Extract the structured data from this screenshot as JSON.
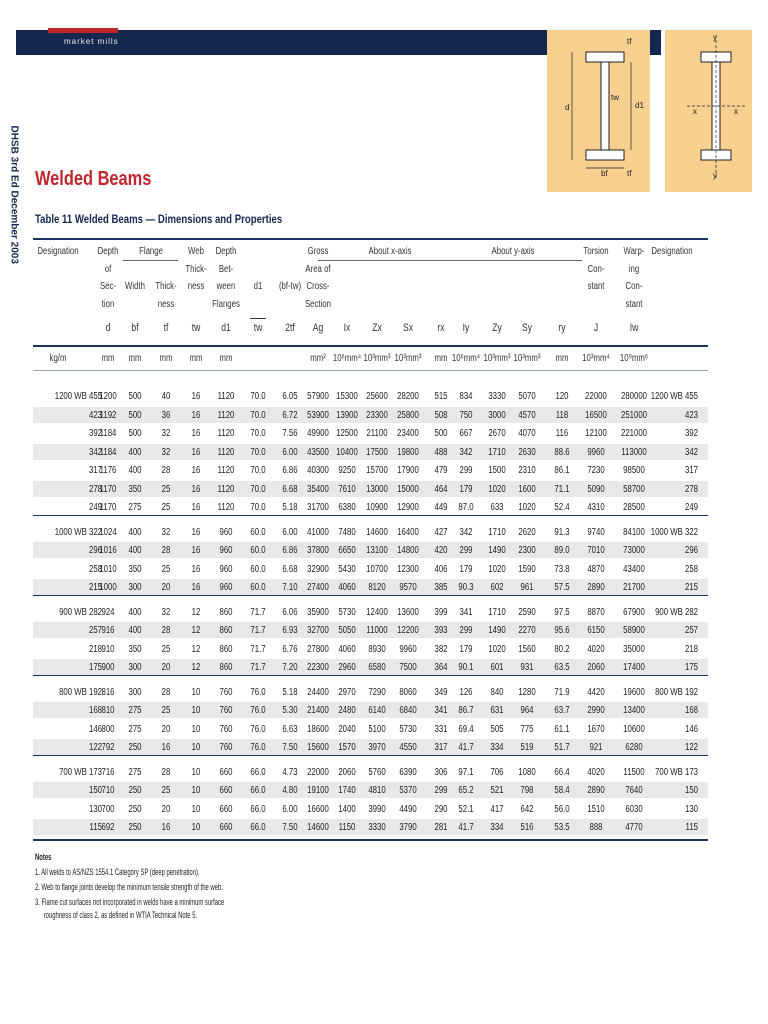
{
  "header": {
    "brand": "market mills",
    "side_text": "DHSB 3rd Ed December 2003"
  },
  "diagram": {
    "labels": [
      "tf",
      "tw",
      "d",
      "d1",
      "bf",
      "tf",
      "y",
      "x",
      "x",
      "y"
    ]
  },
  "title": "Welded Beams",
  "table": {
    "title": "Table 11 Welded Beams — Dimensions and Properties",
    "spans": [
      "Flange",
      "About x-axis",
      "About y-axis"
    ],
    "columns": [
      {
        "lines": [
          "Designation"
        ]
      },
      {
        "lines": [
          "Depth",
          "of",
          "Sec-",
          "tion"
        ],
        "symbol": "d"
      },
      {
        "lines": [
          "Width"
        ],
        "symbol": "bf"
      },
      {
        "lines": [
          "Thick-",
          "ness"
        ],
        "symbol": "tf"
      },
      {
        "lines": [
          "Web",
          "Thick-",
          "ness"
        ],
        "symbol": "tw"
      },
      {
        "lines": [
          "Depth",
          "Bet-",
          "ween",
          "Flanges"
        ],
        "symbol": "d1"
      },
      {
        "lines": [
          "d1"
        ],
        "symbol": "tw"
      },
      {
        "lines": [
          "(bf-tw)"
        ],
        "symbol": "2tf"
      },
      {
        "lines": [
          "Gross",
          "Area of",
          "Cross-",
          "Section"
        ],
        "symbol": "Ag"
      },
      {
        "symbol": "Ix"
      },
      {
        "symbol": "Zx"
      },
      {
        "symbol": "Sx"
      },
      {
        "symbol": "rx"
      },
      {
        "symbol": "Iy"
      },
      {
        "symbol": "Zy"
      },
      {
        "symbol": "Sy"
      },
      {
        "symbol": "ry"
      },
      {
        "lines": [
          "Torsion",
          "Con-",
          "stant"
        ],
        "symbol": "J"
      },
      {
        "lines": [
          "Warp-",
          "ing",
          "Con-",
          "stant"
        ],
        "symbol": "Iw"
      },
      {
        "lines": [
          "Designation"
        ]
      }
    ],
    "units": [
      "kg/m",
      "mm",
      "mm",
      "mm",
      "mm",
      "mm",
      null,
      null,
      "mm²",
      "10⁶mm⁴",
      "10³mm³",
      "10³mm³",
      "mm",
      "10⁶mm⁴",
      "10³mm³",
      "10³mm³",
      "mm",
      "10³mm⁴",
      "10⁹mm⁶",
      null
    ],
    "groups": [
      {
        "rows": [
          [
            "1200 WB 455",
            "1200",
            "500",
            "40",
            "16",
            "1120",
            "70.0",
            "6.05",
            "57900",
            "15300",
            "25600",
            "28200",
            "515",
            "834",
            "3330",
            "5070",
            "120",
            "22000",
            "280000"
          ],
          [
            "423",
            "1192",
            "500",
            "36",
            "16",
            "1120",
            "70.0",
            "6.72",
            "53900",
            "13900",
            "23300",
            "25800",
            "508",
            "750",
            "3000",
            "4570",
            "118",
            "16500",
            "251000"
          ],
          [
            "392",
            "1184",
            "500",
            "32",
            "16",
            "1120",
            "70.0",
            "7.56",
            "49900",
            "12500",
            "21100",
            "23400",
            "500",
            "667",
            "2670",
            "4070",
            "116",
            "12100",
            "221000"
          ],
          [
            "342",
            "1184",
            "400",
            "32",
            "16",
            "1120",
            "70.0",
            "6.00",
            "43500",
            "10400",
            "17500",
            "19800",
            "488",
            "342",
            "1710",
            "2630",
            "88.6",
            "9960",
            "113000"
          ],
          [
            "317",
            "1176",
            "400",
            "28",
            "16",
            "1120",
            "70.0",
            "6.86",
            "40300",
            "9250",
            "15700",
            "17900",
            "479",
            "299",
            "1500",
            "2310",
            "86.1",
            "7230",
            "98500"
          ],
          [
            "278",
            "1170",
            "350",
            "25",
            "16",
            "1120",
            "70.0",
            "6.68",
            "35400",
            "7610",
            "13000",
            "15000",
            "464",
            "179",
            "1020",
            "1600",
            "71.1",
            "5090",
            "58700"
          ],
          [
            "249",
            "1170",
            "275",
            "25",
            "16",
            "1120",
            "70.0",
            "5.18",
            "31700",
            "6380",
            "10900",
            "12900",
            "449",
            "87.0",
            "633",
            "1020",
            "52.4",
            "4310",
            "28500"
          ]
        ]
      },
      {
        "rows": [
          [
            "1000 WB 322",
            "1024",
            "400",
            "32",
            "16",
            "960",
            "60.0",
            "6.00",
            "41000",
            "7480",
            "14600",
            "16400",
            "427",
            "342",
            "1710",
            "2620",
            "91.3",
            "9740",
            "84100"
          ],
          [
            "296",
            "1016",
            "400",
            "28",
            "16",
            "960",
            "60.0",
            "6.86",
            "37800",
            "6650",
            "13100",
            "14800",
            "420",
            "299",
            "1490",
            "2300",
            "89.0",
            "7010",
            "73000"
          ],
          [
            "258",
            "1010",
            "350",
            "25",
            "16",
            "960",
            "60.0",
            "6.68",
            "32900",
            "5430",
            "10700",
            "12300",
            "406",
            "179",
            "1020",
            "1590",
            "73.8",
            "4870",
            "43400"
          ],
          [
            "215",
            "1000",
            "300",
            "20",
            "16",
            "960",
            "60.0",
            "7.10",
            "27400",
            "4060",
            "8120",
            "9570",
            "385",
            "90.3",
            "602",
            "961",
            "57.5",
            "2890",
            "21700"
          ]
        ]
      },
      {
        "rows": [
          [
            "900 WB 282",
            "924",
            "400",
            "32",
            "12",
            "860",
            "71.7",
            "6.06",
            "35900",
            "5730",
            "12400",
            "13600",
            "399",
            "341",
            "1710",
            "2590",
            "97.5",
            "8870",
            "67900"
          ],
          [
            "257",
            "916",
            "400",
            "28",
            "12",
            "860",
            "71.7",
            "6.93",
            "32700",
            "5050",
            "11000",
            "12200",
            "393",
            "299",
            "1490",
            "2270",
            "95.6",
            "6150",
            "58900"
          ],
          [
            "218",
            "910",
            "350",
            "25",
            "12",
            "860",
            "71.7",
            "6.76",
            "27800",
            "4060",
            "8930",
            "9960",
            "382",
            "179",
            "1020",
            "1560",
            "80.2",
            "4020",
            "35000"
          ],
          [
            "175",
            "900",
            "300",
            "20",
            "12",
            "860",
            "71.7",
            "7.20",
            "22300",
            "2960",
            "6580",
            "7500",
            "364",
            "90.1",
            "601",
            "931",
            "63.5",
            "2060",
            "17400"
          ]
        ]
      },
      {
        "rows": [
          [
            "800 WB 192",
            "816",
            "300",
            "28",
            "10",
            "760",
            "76.0",
            "5.18",
            "24400",
            "2970",
            "7290",
            "8060",
            "349",
            "126",
            "840",
            "1280",
            "71.9",
            "4420",
            "19600"
          ],
          [
            "168",
            "810",
            "275",
            "25",
            "10",
            "760",
            "76.0",
            "5.30",
            "21400",
            "2480",
            "6140",
            "6840",
            "341",
            "86.7",
            "631",
            "964",
            "63.7",
            "2990",
            "13400"
          ],
          [
            "146",
            "800",
            "275",
            "20",
            "10",
            "760",
            "76.0",
            "6.63",
            "18600",
            "2040",
            "5100",
            "5730",
            "331",
            "69.4",
            "505",
            "775",
            "61.1",
            "1670",
            "10600"
          ],
          [
            "122",
            "792",
            "250",
            "16",
            "10",
            "760",
            "76.0",
            "7.50",
            "15600",
            "1570",
            "3970",
            "4550",
            "317",
            "41.7",
            "334",
            "519",
            "51.7",
            "921",
            "6280"
          ]
        ]
      },
      {
        "rows": [
          [
            "700 WB 173",
            "716",
            "275",
            "28",
            "10",
            "660",
            "66.0",
            "4.73",
            "22000",
            "2060",
            "5760",
            "6390",
            "306",
            "97.1",
            "706",
            "1080",
            "66.4",
            "4020",
            "11500"
          ],
          [
            "150",
            "710",
            "250",
            "25",
            "10",
            "660",
            "66.0",
            "4.80",
            "19100",
            "1740",
            "4810",
            "5370",
            "299",
            "65.2",
            "521",
            "798",
            "58.4",
            "2890",
            "7640"
          ],
          [
            "130",
            "700",
            "250",
            "20",
            "10",
            "660",
            "66.0",
            "6.00",
            "16600",
            "1400",
            "3990",
            "4490",
            "290",
            "52.1",
            "417",
            "642",
            "56.0",
            "1510",
            "6030"
          ],
          [
            "115",
            "692",
            "250",
            "16",
            "10",
            "660",
            "66.0",
            "7.50",
            "14600",
            "1150",
            "3330",
            "3790",
            "281",
            "41.7",
            "334",
            "516",
            "53.5",
            "888",
            "4770"
          ]
        ]
      }
    ]
  },
  "notes": {
    "title": "Notes",
    "items": [
      "1.  All welds to AS/NZS 1554.1 Category SP (deep penetration).",
      "2.  Web to flange joints develop the minimum tensile strength of the web.",
      "3.  Flame cut surfaces not incorporated in welds have a minimum surface roughness of class 2, as defined in WTIA Technical Note 5."
    ]
  }
}
